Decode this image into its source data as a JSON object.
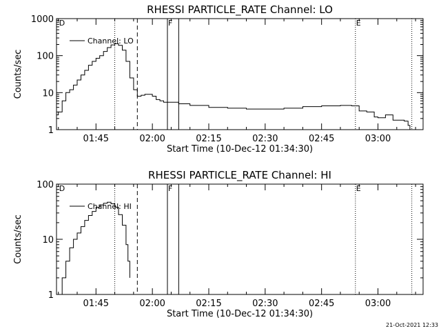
{
  "footer": {
    "timestamp": "21-Oct-2021 12:33"
  },
  "chart_data": [
    {
      "type": "line",
      "title": "RHESSI PARTICLE_RATE Channel: LO",
      "xlabel": "Start Time (10-Dec-12 01:34:30)",
      "ylabel": "Counts/sec",
      "yscale": "log",
      "ylim": [
        1,
        1000
      ],
      "xlim": [
        "01:34:30",
        "03:12:00"
      ],
      "x_ticks": [
        "01:45",
        "02:00",
        "02:15",
        "02:30",
        "02:45",
        "03:00"
      ],
      "y_ticks": [
        "1",
        "10",
        "100",
        "1000"
      ],
      "legend": {
        "position": "top-left",
        "entries": [
          "Channel: LO"
        ]
      },
      "flag_labels": [
        {
          "label": "D",
          "time": "01:35"
        },
        {
          "label": "F",
          "time": "02:04"
        },
        {
          "label": "E",
          "time": "02:54"
        }
      ],
      "vlines": [
        {
          "time": "01:50",
          "style": "dotted"
        },
        {
          "time": "01:56",
          "style": "dashed"
        },
        {
          "time": "02:04",
          "style": "solid"
        },
        {
          "time": "02:07",
          "style": "solid"
        },
        {
          "time": "02:54",
          "style": "dotted"
        },
        {
          "time": "03:09",
          "style": "dotted"
        }
      ],
      "series": [
        {
          "name": "Channel: LO",
          "points": [
            [
              "01:34:30",
              2.5
            ],
            [
              "01:35",
              3
            ],
            [
              "01:36",
              6
            ],
            [
              "01:37",
              10
            ],
            [
              "01:38",
              12
            ],
            [
              "01:39",
              16
            ],
            [
              "01:40",
              22
            ],
            [
              "01:41",
              30
            ],
            [
              "01:42",
              40
            ],
            [
              "01:43",
              55
            ],
            [
              "01:44",
              70
            ],
            [
              "01:45",
              85
            ],
            [
              "01:46",
              100
            ],
            [
              "01:47",
              130
            ],
            [
              "01:48",
              165
            ],
            [
              "01:49",
              195
            ],
            [
              "01:50",
              210
            ],
            [
              "01:51",
              190
            ],
            [
              "01:52",
              140
            ],
            [
              "01:53",
              70
            ],
            [
              "01:54",
              25
            ],
            [
              "01:55",
              12
            ],
            [
              "01:56",
              8
            ],
            [
              "01:57",
              8.5
            ],
            [
              "01:58",
              9
            ],
            [
              "01:59",
              9
            ],
            [
              "02:00",
              8
            ],
            [
              "02:01",
              6.5
            ],
            [
              "02:02",
              6
            ],
            [
              "02:03",
              5.5
            ],
            [
              "02:05",
              5.5
            ],
            [
              "02:07",
              5
            ],
            [
              "02:10",
              4.5
            ],
            [
              "02:15",
              4
            ],
            [
              "02:20",
              3.8
            ],
            [
              "02:25",
              3.6
            ],
            [
              "02:30",
              3.6
            ],
            [
              "02:35",
              3.8
            ],
            [
              "02:40",
              4.2
            ],
            [
              "02:45",
              4.4
            ],
            [
              "02:50",
              4.5
            ],
            [
              "02:53",
              4.4
            ],
            [
              "02:55",
              3.2
            ],
            [
              "02:57",
              3
            ],
            [
              "02:59",
              2.2
            ],
            [
              "03:00",
              2.1
            ],
            [
              "03:02",
              2.5
            ],
            [
              "03:04",
              1.8
            ],
            [
              "03:06",
              1.8
            ],
            [
              "03:07",
              1.7
            ],
            [
              "03:08",
              1.3
            ],
            [
              "03:08:30",
              1.0
            ]
          ]
        }
      ]
    },
    {
      "type": "line",
      "title": "RHESSI PARTICLE_RATE Channel: HI",
      "xlabel": "Start Time (10-Dec-12 01:34:30)",
      "ylabel": "Counts/sec",
      "yscale": "log",
      "ylim": [
        1,
        100
      ],
      "xlim": [
        "01:34:30",
        "03:12:00"
      ],
      "x_ticks": [
        "01:45",
        "02:00",
        "02:15",
        "02:30",
        "02:45",
        "03:00"
      ],
      "y_ticks": [
        "1",
        "10",
        "100"
      ],
      "legend": {
        "position": "top-left",
        "entries": [
          "Channel: HI"
        ]
      },
      "flag_labels": [
        {
          "label": "D",
          "time": "01:35"
        },
        {
          "label": "F",
          "time": "02:04"
        },
        {
          "label": "E",
          "time": "02:54"
        }
      ],
      "vlines": [
        {
          "time": "01:50",
          "style": "dotted"
        },
        {
          "time": "01:56",
          "style": "dashed"
        },
        {
          "time": "02:04",
          "style": "solid"
        },
        {
          "time": "02:07",
          "style": "solid"
        },
        {
          "time": "02:54",
          "style": "dotted"
        },
        {
          "time": "03:09",
          "style": "dotted"
        }
      ],
      "series": [
        {
          "name": "Channel: HI",
          "points": [
            [
              "01:35:30",
              1.0
            ],
            [
              "01:36",
              2
            ],
            [
              "01:37",
              4
            ],
            [
              "01:38",
              7
            ],
            [
              "01:39",
              10
            ],
            [
              "01:40",
              13
            ],
            [
              "01:41",
              17
            ],
            [
              "01:42",
              22
            ],
            [
              "01:43",
              27
            ],
            [
              "01:44",
              32
            ],
            [
              "01:45",
              38
            ],
            [
              "01:46",
              42
            ],
            [
              "01:47",
              45
            ],
            [
              "01:48",
              47
            ],
            [
              "01:49",
              44
            ],
            [
              "01:50",
              38
            ],
            [
              "01:51",
              28
            ],
            [
              "01:52",
              18
            ],
            [
              "01:53",
              8
            ],
            [
              "01:53:30",
              4
            ],
            [
              "01:54",
              2
            ]
          ]
        }
      ]
    }
  ]
}
